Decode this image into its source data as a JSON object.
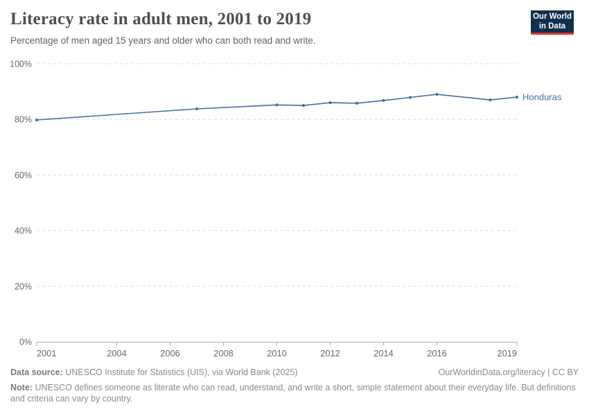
{
  "header": {
    "title": "Literacy rate in adult men, 2001 to 2019",
    "subtitle": "Percentage of men aged 15 years and older who can both read and write."
  },
  "logo": {
    "line1": "Our World",
    "line2": "in Data"
  },
  "chart_data": {
    "type": "line",
    "title": "Literacy rate in adult men, 2001 to 2019",
    "xlabel": "",
    "ylabel": "",
    "xlim": [
      2001,
      2019
    ],
    "ylim": [
      0,
      100
    ],
    "x_ticks": [
      2001,
      2004,
      2006,
      2008,
      2010,
      2012,
      2014,
      2016,
      2019
    ],
    "y_ticks": [
      0,
      20,
      40,
      60,
      80,
      100
    ],
    "y_tick_suffix": "%",
    "grid": "horizontal-dashed",
    "legend_position": "end-of-line-label",
    "x": [
      2001,
      2007,
      2010,
      2011,
      2012,
      2013,
      2014,
      2015,
      2016,
      2018,
      2019
    ],
    "series": [
      {
        "name": "Honduras",
        "color": "#4a69a5",
        "values": [
          79.8,
          83.8,
          85.2,
          85.0,
          86.0,
          85.8,
          86.8,
          87.9,
          89.0,
          87.0,
          88.0
        ]
      }
    ]
  },
  "footer": {
    "data_source_label": "Data source:",
    "data_source": "UNESCO Institute for Statistics (UIS), via World Bank (2025)",
    "link": "OurWorldinData.org/literacy | CC BY",
    "note_label": "Note:",
    "note": "UNESCO defines someone as literate who can read, understand, and write a short, simple statement about their everyday life. But definitions and criteria can vary by country."
  },
  "colors": {
    "line": "#4a69a5",
    "logo_bg": "#12304e",
    "logo_accent": "#cf3c2c",
    "grid": "#dedede",
    "axis": "#a5a5a5",
    "tick": "#adadad",
    "tick_label": "#666666",
    "title": "#4b5056"
  }
}
